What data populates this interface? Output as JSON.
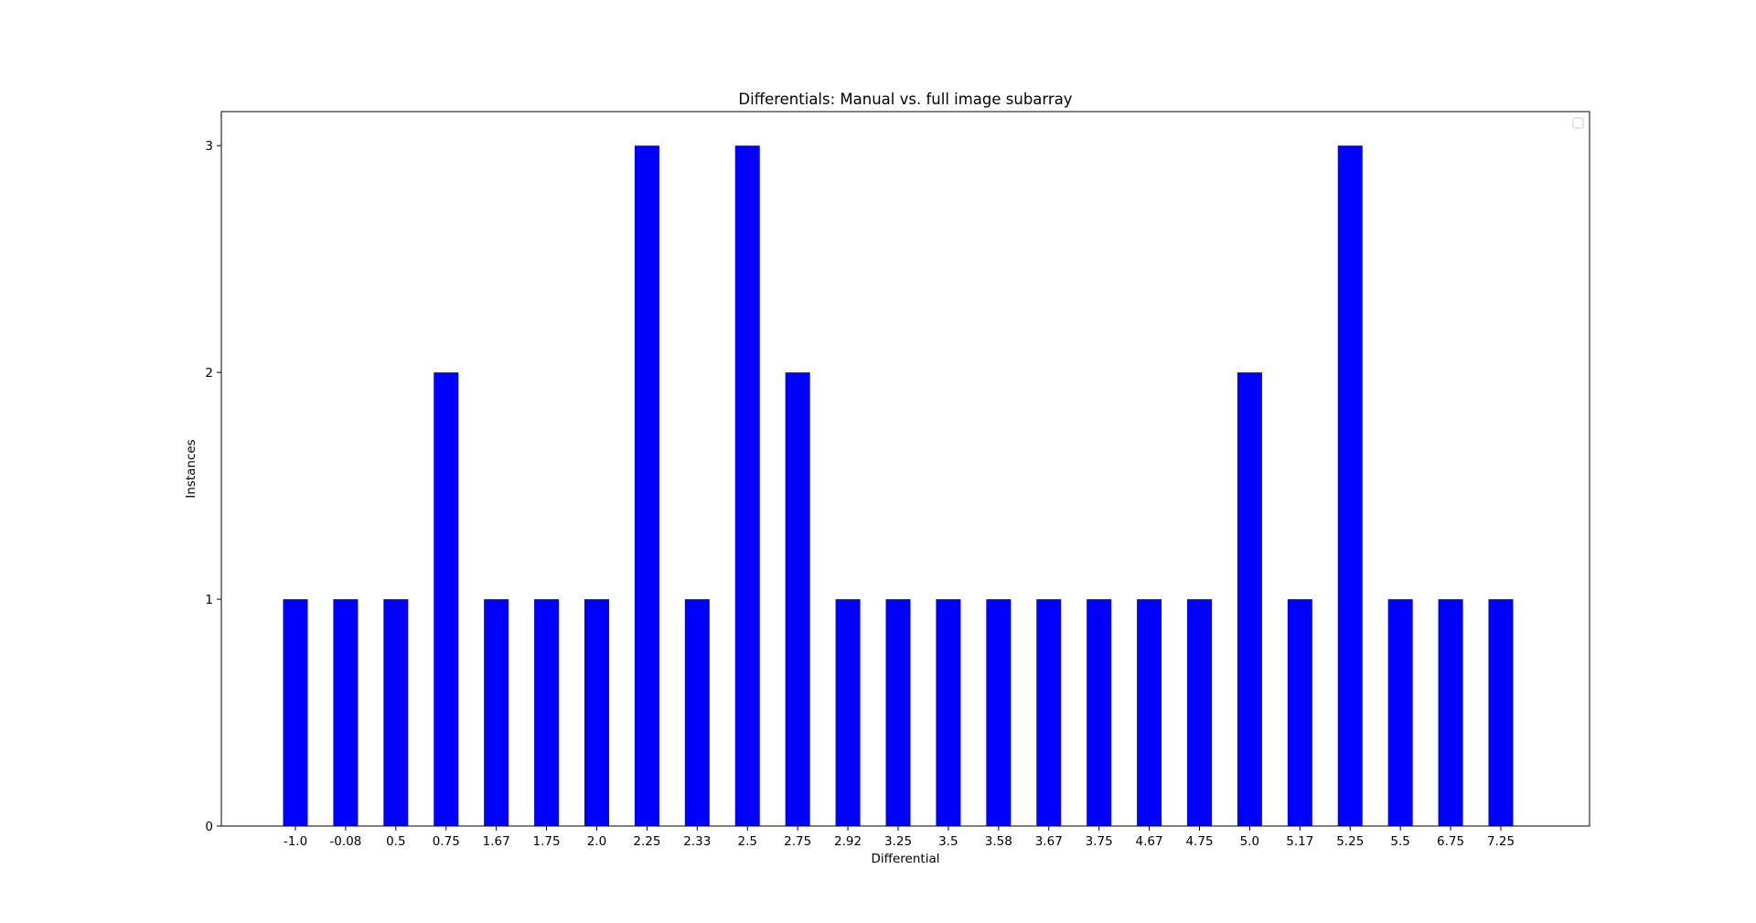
{
  "chart_data": {
    "type": "bar",
    "title": "Differentials: Manual vs. full image subarray",
    "xlabel": "Differential",
    "ylabel": "Instances",
    "categories": [
      "-1.0",
      "-0.08",
      "0.5",
      "0.75",
      "1.67",
      "1.75",
      "2.0",
      "2.25",
      "2.33",
      "2.5",
      "2.75",
      "2.92",
      "3.25",
      "3.5",
      "3.58",
      "3.67",
      "3.75",
      "4.67",
      "4.75",
      "5.0",
      "5.17",
      "5.25",
      "5.5",
      "6.75",
      "7.25"
    ],
    "values": [
      1,
      1,
      1,
      2,
      1,
      1,
      1,
      3,
      1,
      3,
      2,
      1,
      1,
      1,
      1,
      1,
      1,
      1,
      1,
      2,
      1,
      3,
      1,
      1,
      1
    ],
    "yticks": [
      0,
      1,
      2,
      3
    ],
    "ylim": [
      0,
      3.15
    ],
    "bar_color": "#0000ff",
    "legend": "top-right",
    "grid": false
  }
}
